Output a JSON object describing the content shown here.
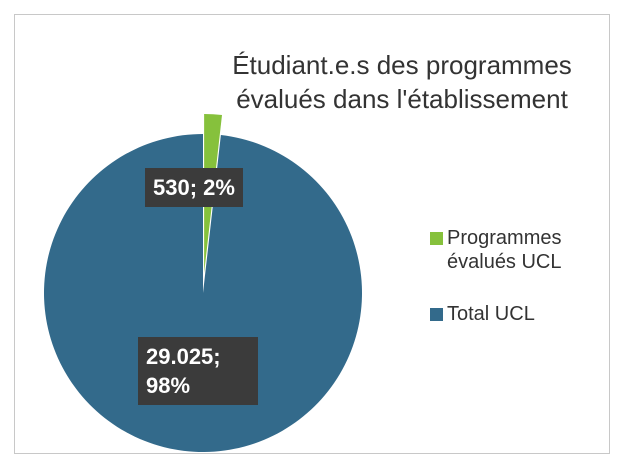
{
  "chart_data": {
    "type": "pie",
    "title": "Étudiant.e.s des programmes évalués dans l'établissement",
    "categories": [
      "Programmes évalués UCL",
      "Total UCL"
    ],
    "values": [
      530,
      29025
    ],
    "value_labels": [
      "530; 2%",
      "29.025; 98%"
    ],
    "colors": [
      "#86c13c",
      "#336a8b"
    ],
    "legend": "right"
  }
}
